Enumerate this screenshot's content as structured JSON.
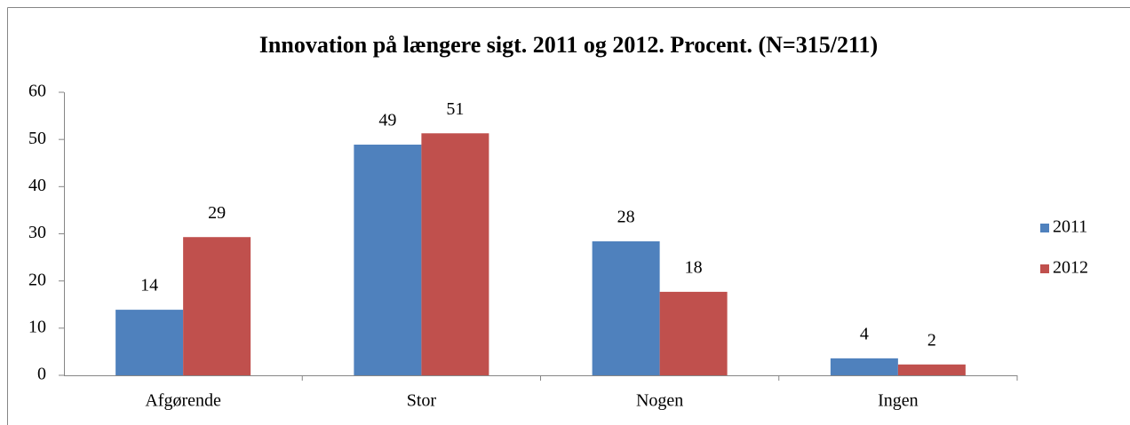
{
  "chart_data": {
    "type": "bar",
    "title": "Innovation på længere sigt. 2011 og 2012. Procent. (N=315/211)",
    "categories": [
      "Afgørende",
      "Stor",
      "Nogen",
      "Ingen"
    ],
    "series": [
      {
        "name": "2011",
        "color": "#4f81bd",
        "values": [
          13.9,
          48.9,
          28.4,
          3.6
        ],
        "value_labels": [
          "14",
          "49",
          "28",
          "4"
        ]
      },
      {
        "name": "2012",
        "color": "#c0504d",
        "values": [
          29.3,
          51.3,
          17.7,
          2.3
        ],
        "value_labels": [
          "29",
          "51",
          "18",
          "2"
        ]
      }
    ],
    "ylim": [
      0,
      60
    ],
    "yticks": [
      0,
      10,
      20,
      30,
      40,
      50,
      60
    ],
    "grid": false,
    "legend": "right"
  }
}
